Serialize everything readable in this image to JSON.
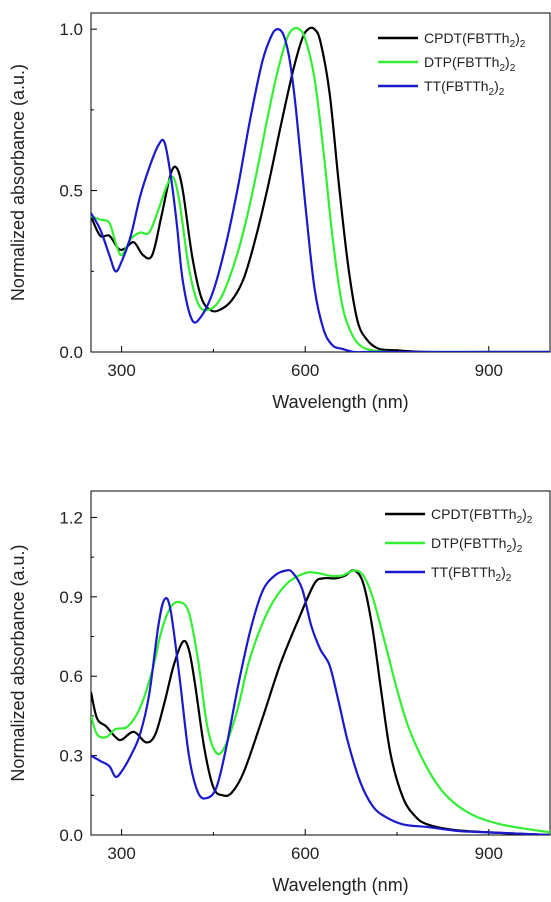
{
  "chart_data": [
    {
      "type": "line",
      "xlabel": "Wavelength (nm)",
      "ylabel": "Normalized absorbance (a.u.)",
      "xlim": [
        250,
        1000
      ],
      "ylim": [
        0,
        1.05
      ],
      "xticks": [
        300,
        600,
        900
      ],
      "xtick_labels": [
        "300",
        "600",
        "900"
      ],
      "yticks": [
        0,
        0.5,
        1.0
      ],
      "ytick_labels": [
        "0.0",
        "0.5",
        "1.0"
      ],
      "grid": false,
      "legend_position": "top-right",
      "series": [
        {
          "name": "CPDT(FBTTh2)2",
          "label_main": "CPDT(FBTTh",
          "label_sub1": "2",
          "label_mid": ")",
          "label_sub2": "2",
          "color": "#000000",
          "x": [
            250,
            265,
            280,
            295,
            305,
            320,
            335,
            350,
            365,
            380,
            390,
            400,
            415,
            430,
            445,
            460,
            480,
            500,
            520,
            540,
            560,
            580,
            595,
            605,
            615,
            625,
            640,
            655,
            670,
            685,
            700,
            720,
            750,
            800,
            900,
            1000
          ],
          "y": [
            0.42,
            0.36,
            0.36,
            0.32,
            0.32,
            0.34,
            0.3,
            0.3,
            0.42,
            0.55,
            0.57,
            0.5,
            0.3,
            0.17,
            0.13,
            0.13,
            0.16,
            0.23,
            0.36,
            0.52,
            0.7,
            0.87,
            0.97,
            1.0,
            1.0,
            0.96,
            0.8,
            0.52,
            0.27,
            0.1,
            0.04,
            0.01,
            0.005,
            0.0,
            0.0,
            0.0
          ]
        },
        {
          "name": "DTP(FBTTh2)2",
          "label_main": "DTP(FBTTh",
          "label_sub1": "2",
          "label_mid": ")",
          "label_sub2": "2",
          "color": "#33ee33",
          "x": [
            250,
            265,
            280,
            290,
            300,
            315,
            330,
            345,
            360,
            375,
            385,
            395,
            410,
            425,
            440,
            460,
            480,
            500,
            520,
            540,
            555,
            570,
            580,
            590,
            600,
            615,
            630,
            645,
            660,
            675,
            690,
            710,
            740,
            800,
            900,
            1000
          ],
          "y": [
            0.42,
            0.41,
            0.4,
            0.34,
            0.3,
            0.35,
            0.37,
            0.37,
            0.44,
            0.52,
            0.54,
            0.46,
            0.26,
            0.15,
            0.13,
            0.16,
            0.25,
            0.38,
            0.55,
            0.74,
            0.87,
            0.97,
            1.0,
            1.0,
            0.97,
            0.85,
            0.62,
            0.35,
            0.15,
            0.06,
            0.02,
            0.005,
            0.0,
            0.0,
            0.0,
            0.0
          ]
        },
        {
          "name": "TT(FBTTh2)2",
          "label_main": "TT(FBTTh",
          "label_sub1": "2",
          "label_mid": ")",
          "label_sub2": "2",
          "color": "#1a1acc",
          "x": [
            250,
            265,
            280,
            290,
            300,
            315,
            330,
            345,
            360,
            370,
            380,
            390,
            400,
            415,
            430,
            450,
            470,
            490,
            510,
            530,
            545,
            555,
            565,
            575,
            585,
            600,
            615,
            630,
            645,
            660,
            680,
            700,
            750,
            800,
            900,
            1000
          ],
          "y": [
            0.43,
            0.38,
            0.3,
            0.25,
            0.28,
            0.36,
            0.48,
            0.57,
            0.64,
            0.65,
            0.55,
            0.4,
            0.22,
            0.1,
            0.11,
            0.19,
            0.33,
            0.51,
            0.72,
            0.9,
            0.98,
            1.0,
            0.98,
            0.9,
            0.75,
            0.46,
            0.2,
            0.07,
            0.02,
            0.01,
            0.0,
            0.0,
            0.0,
            0.0,
            0.0,
            0.0
          ]
        }
      ]
    },
    {
      "type": "line",
      "xlabel": "Wavelength (nm)",
      "ylabel": "Normalized absorbance (a.u.)",
      "xlim": [
        250,
        1000
      ],
      "ylim": [
        0,
        1.3
      ],
      "xticks": [
        300,
        600,
        900
      ],
      "xtick_labels": [
        "300",
        "600",
        "900"
      ],
      "yticks": [
        0,
        0.3,
        0.6,
        0.9,
        1.2
      ],
      "ytick_labels": [
        "0.0",
        "0.3",
        "0.6",
        "0.9",
        "1.2"
      ],
      "grid": false,
      "legend_position": "top-right",
      "series": [
        {
          "name": "CPDT(FBTTh2)2",
          "label_main": "CPDT(FBTTh",
          "label_sub1": "2",
          "label_mid": ")",
          "label_sub2": "2",
          "color": "#000000",
          "x": [
            250,
            260,
            275,
            290,
            300,
            320,
            340,
            355,
            370,
            385,
            400,
            410,
            420,
            435,
            450,
            465,
            480,
            500,
            530,
            560,
            590,
            615,
            630,
            650,
            665,
            680,
            695,
            710,
            725,
            740,
            760,
            780,
            800,
            840,
            900,
            1000
          ],
          "y": [
            0.54,
            0.44,
            0.41,
            0.37,
            0.36,
            0.39,
            0.35,
            0.38,
            0.5,
            0.64,
            0.73,
            0.7,
            0.57,
            0.33,
            0.18,
            0.15,
            0.16,
            0.24,
            0.44,
            0.65,
            0.82,
            0.95,
            0.97,
            0.97,
            0.98,
            1.0,
            0.95,
            0.78,
            0.53,
            0.3,
            0.14,
            0.07,
            0.04,
            0.02,
            0.01,
            0.0
          ]
        },
        {
          "name": "DTP(FBTTh2)2",
          "label_main": "DTP(FBTTh",
          "label_sub1": "2",
          "label_mid": ")",
          "label_sub2": "2",
          "color": "#33ee33",
          "x": [
            250,
            260,
            275,
            290,
            310,
            330,
            350,
            365,
            380,
            395,
            410,
            425,
            440,
            455,
            470,
            490,
            510,
            540,
            570,
            600,
            620,
            640,
            660,
            680,
            695,
            710,
            730,
            750,
            770,
            800,
            830,
            870,
            920,
            1000
          ],
          "y": [
            0.45,
            0.38,
            0.37,
            0.4,
            0.41,
            0.48,
            0.62,
            0.77,
            0.86,
            0.88,
            0.84,
            0.66,
            0.41,
            0.31,
            0.34,
            0.48,
            0.67,
            0.85,
            0.95,
            0.99,
            0.99,
            0.98,
            0.98,
            1.0,
            0.98,
            0.9,
            0.73,
            0.55,
            0.4,
            0.25,
            0.15,
            0.08,
            0.04,
            0.01
          ]
        },
        {
          "name": "TT(FBTTh2)2",
          "label_main": "TT(FBTTh",
          "label_sub1": "2",
          "label_mid": ")",
          "label_sub2": "2",
          "color": "#1a1acc",
          "x": [
            250,
            265,
            280,
            290,
            300,
            315,
            330,
            345,
            360,
            370,
            380,
            395,
            410,
            425,
            440,
            455,
            470,
            490,
            510,
            530,
            550,
            570,
            580,
            595,
            610,
            625,
            640,
            655,
            670,
            690,
            710,
            730,
            760,
            800,
            850,
            900,
            1000
          ],
          "y": [
            0.3,
            0.28,
            0.26,
            0.22,
            0.24,
            0.3,
            0.38,
            0.53,
            0.79,
            0.89,
            0.85,
            0.59,
            0.3,
            0.16,
            0.14,
            0.18,
            0.32,
            0.56,
            0.77,
            0.92,
            0.98,
            1.0,
            0.99,
            0.93,
            0.79,
            0.7,
            0.64,
            0.5,
            0.35,
            0.2,
            0.11,
            0.07,
            0.04,
            0.03,
            0.015,
            0.01,
            0.0
          ]
        }
      ]
    }
  ]
}
